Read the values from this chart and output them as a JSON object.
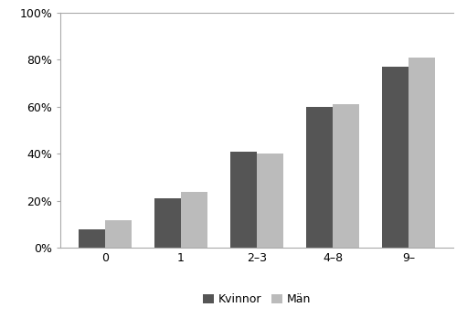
{
  "categories": [
    "0",
    "1",
    "2–3",
    "4–8",
    "9–"
  ],
  "kvinnor": [
    0.08,
    0.21,
    0.41,
    0.6,
    0.77
  ],
  "man": [
    0.12,
    0.24,
    0.4,
    0.61,
    0.81
  ],
  "color_kvinnor": "#555555",
  "color_man": "#bbbbbb",
  "legend_kvinnor": "Kvinnor",
  "legend_man": "Män",
  "ylim": [
    0,
    1.0
  ],
  "yticks": [
    0.0,
    0.2,
    0.4,
    0.6,
    0.8,
    1.0
  ],
  "ytick_labels": [
    "0%",
    "20%",
    "40%",
    "60%",
    "80%",
    "100%"
  ],
  "background_color": "#ffffff",
  "spine_color": "#aaaaaa",
  "bar_width": 0.35
}
